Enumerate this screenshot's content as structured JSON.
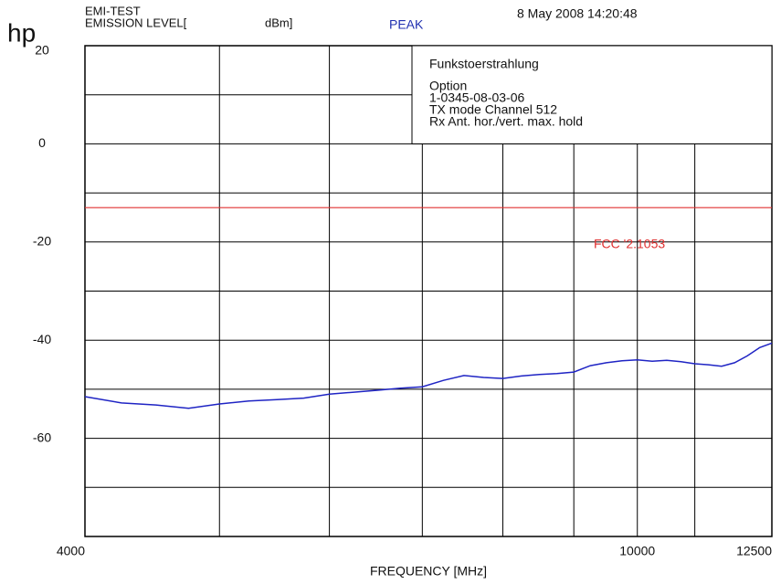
{
  "chart_data": {
    "type": "line",
    "logo": "hp",
    "title_lines": [
      "EMI-TEST",
      "EMISSION LEVEL["
    ],
    "unit": "dBm]",
    "detector": "PEAK",
    "timestamp": "8 May 2008  14:20:48",
    "legend_lines": [
      "Funkstoerstrahlung",
      "Option",
      "1-0345-08-03-06",
      "TX mode Channel 512",
      "Rx Ant. hor./vert. max. hold"
    ],
    "x_label": "FREQUENCY [MHz]",
    "x_log": true,
    "xlim": [
      4000,
      12500
    ],
    "xticks": [
      4000,
      10000,
      12500
    ],
    "xgrid": [
      5000,
      6000,
      7000,
      8000,
      9000,
      10000,
      11000
    ],
    "ylim": [
      -80,
      20
    ],
    "yticks": [
      20,
      0,
      -20,
      -40,
      -60
    ],
    "ygrid": [
      10,
      0,
      -10,
      -20,
      -30,
      -40,
      -50,
      -60,
      -70
    ],
    "grid": true,
    "limit_line": {
      "value": -13,
      "label": "FCC '2.1053",
      "color": "#e03030"
    },
    "x": [
      4000,
      4250,
      4500,
      4750,
      5000,
      5250,
      5500,
      5750,
      6000,
      6250,
      6500,
      6750,
      7000,
      7250,
      7500,
      7750,
      8000,
      8250,
      8500,
      8750,
      9000,
      9250,
      9500,
      9750,
      10000,
      10250,
      10500,
      10750,
      11000,
      11250,
      11500,
      11750,
      12000,
      12250,
      12500
    ],
    "series": [
      {
        "name": "PEAK",
        "color": "#1f24c4",
        "values": [
          -51.5,
          -52.8,
          -53.2,
          -53.9,
          -53.0,
          -52.4,
          -52.1,
          -51.8,
          -51.0,
          -50.6,
          -50.2,
          -49.8,
          -49.5,
          -48.2,
          -47.2,
          -47.6,
          -47.8,
          -47.3,
          -47.0,
          -46.8,
          -46.5,
          -45.2,
          -44.6,
          -44.2,
          -44.0,
          -44.3,
          -44.1,
          -44.4,
          -44.8,
          -45.0,
          -45.3,
          -44.6,
          -43.2,
          -41.5,
          -40.6
        ]
      }
    ]
  }
}
